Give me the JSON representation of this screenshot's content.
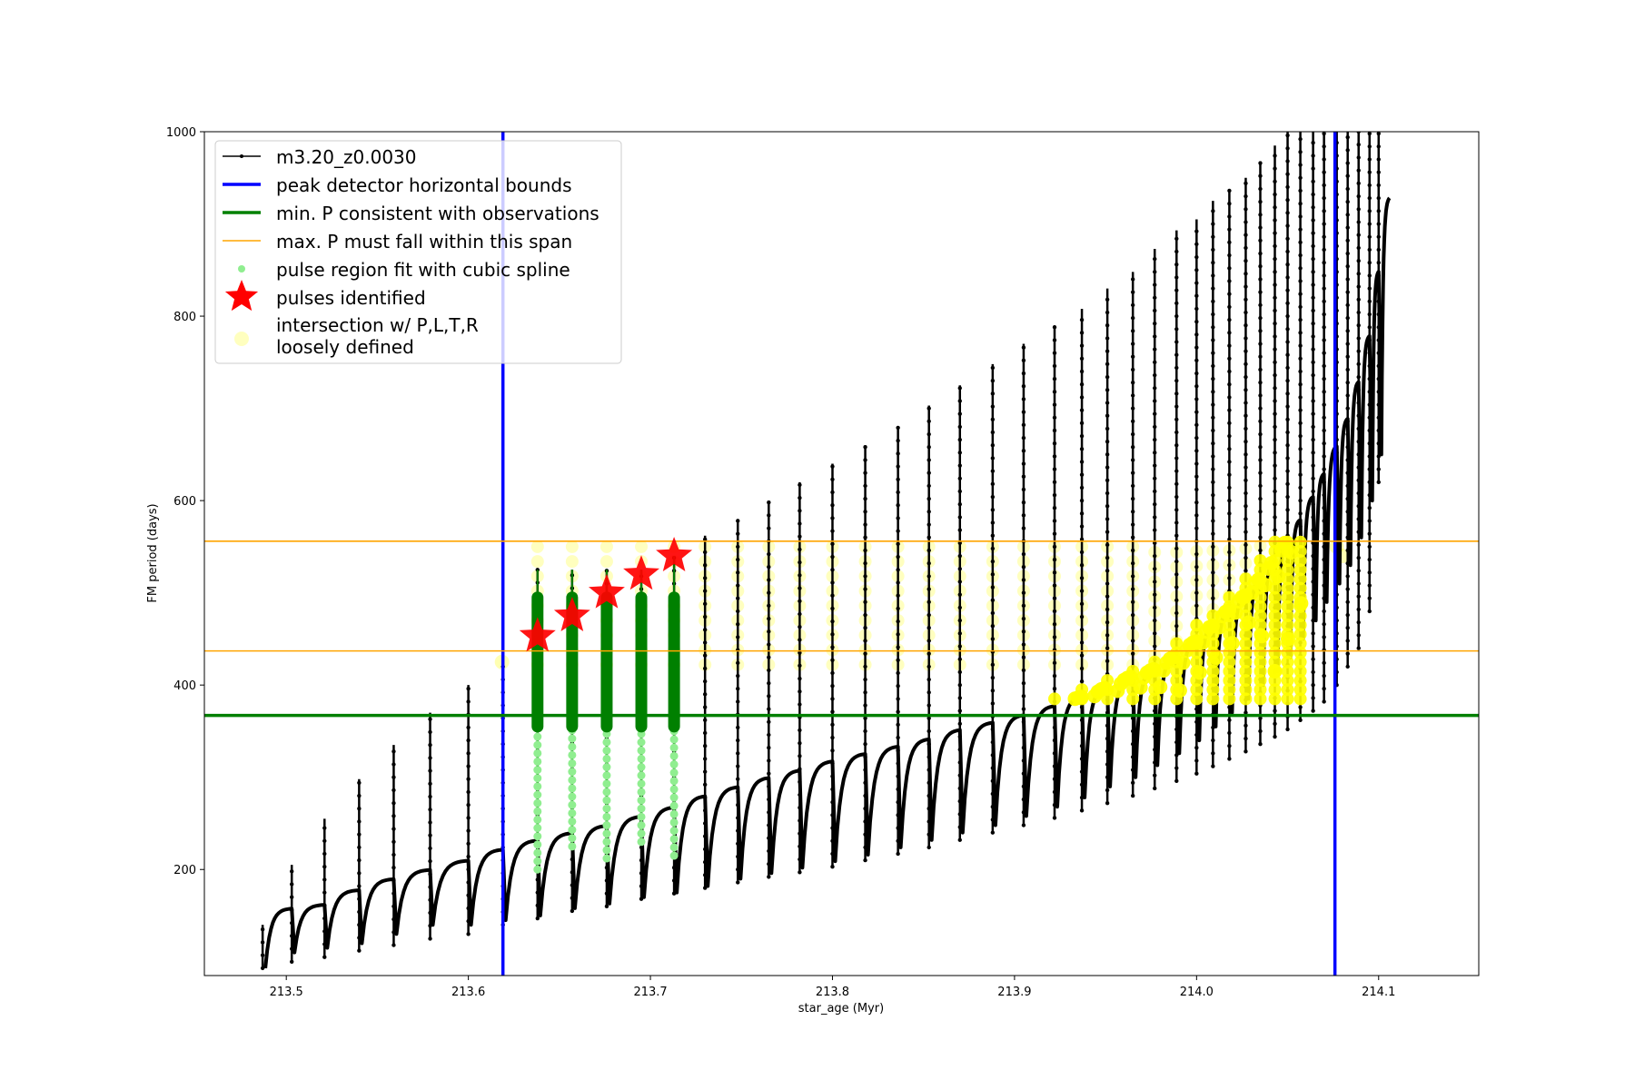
{
  "chart_data": {
    "type": "line",
    "title": "",
    "xlabel": "star_age (Myr)",
    "ylabel": "FM period (days)",
    "xlim": [
      213.455,
      214.155
    ],
    "ylim": [
      85,
      1000
    ],
    "xticks": [
      213.5,
      213.6,
      213.7,
      213.8,
      213.9,
      214.0,
      214.1
    ],
    "xtick_labels": [
      "213.5",
      "213.6",
      "213.7",
      "213.8",
      "213.9",
      "214.0",
      "214.1"
    ],
    "yticks": [
      200,
      400,
      600,
      800,
      1000
    ],
    "ytick_labels": [
      "200",
      "400",
      "600",
      "800",
      "1000"
    ],
    "grid": false,
    "legend_position": "top-left",
    "colors": {
      "track": "#000000",
      "bounds": "#0000ff",
      "min_p": "#008000",
      "max_p": "#ffa500",
      "spline_light": "#90ee90",
      "spline_dark": "#008000",
      "pulse_star": "#ff0000",
      "intersection": "#ffff00"
    },
    "track_series": {
      "name": "m3.20_z0.0030",
      "pulse_times": [
        213.487,
        213.503,
        213.521,
        213.54,
        213.559,
        213.579,
        213.6,
        213.619,
        213.638,
        213.657,
        213.676,
        213.695,
        213.713,
        213.73,
        213.748,
        213.765,
        213.782,
        213.8,
        213.818,
        213.836,
        213.853,
        213.87,
        213.888,
        213.905,
        213.922,
        213.937,
        213.951,
        213.965,
        213.977,
        213.989,
        214.0,
        214.009,
        214.018,
        214.027,
        214.035,
        214.043,
        214.05,
        214.057,
        214.064,
        214.07,
        214.077,
        214.083,
        214.089,
        214.095,
        214.1
      ],
      "pulse_base": [
        93,
        110,
        115,
        120,
        130,
        140,
        140,
        145,
        150,
        158,
        163,
        170,
        175,
        182,
        190,
        196,
        202,
        209,
        216,
        224,
        232,
        240,
        248,
        258,
        268,
        278,
        290,
        300,
        313,
        326,
        340,
        355,
        370,
        385,
        400,
        415,
        430,
        450,
        470,
        490,
        510,
        530,
        560,
        600,
        650
      ],
      "pulse_top": [
        140,
        205,
        255,
        298,
        335,
        370,
        400,
        430,
        525,
        525,
        525,
        525,
        540,
        562,
        580,
        600,
        620,
        640,
        660,
        680,
        703,
        725,
        748,
        770,
        790,
        808,
        830,
        848,
        873,
        893,
        905,
        925,
        937,
        950,
        968,
        985,
        1000,
        1000,
        1000,
        1000,
        1000,
        1000,
        1000,
        1000,
        1000
      ],
      "pulse_tail_min": [
        93,
        100,
        105,
        112,
        118,
        125,
        130,
        140,
        147,
        155,
        160,
        168,
        174,
        180,
        186,
        192,
        197,
        203,
        210,
        217,
        224,
        232,
        240,
        248,
        256,
        264,
        272,
        280,
        288,
        296,
        304,
        312,
        320,
        328,
        336,
        344,
        352,
        362,
        372,
        382,
        400,
        420,
        440,
        480,
        620
      ],
      "plateau": [
        158,
        162,
        178,
        190,
        200,
        210,
        222,
        232,
        240,
        248,
        258,
        268,
        280,
        290,
        300,
        308,
        318,
        326,
        334,
        342,
        352,
        360,
        368,
        378,
        388,
        398,
        410,
        418,
        432,
        448,
        465,
        482,
        498,
        516,
        535,
        557,
        580,
        605,
        630,
        660,
        690,
        730,
        780,
        850,
        930
      ]
    },
    "bounds_series": {
      "name": "peak detector horizontal bounds",
      "x": [
        213.619,
        214.076
      ]
    },
    "min_p_series": {
      "name": "min. P consistent with observations",
      "y": 367
    },
    "max_p_series": {
      "name": "max. P must fall within this span",
      "y": [
        437,
        556
      ]
    },
    "spline_series": {
      "name": "pulse region fit with cubic spline",
      "pulses": [
        {
          "x": 213.638,
          "ymin": 200,
          "ymax": 490,
          "dark_min": 355,
          "dark_max": 495,
          "tip": 525
        },
        {
          "x": 213.657,
          "ymin": 225,
          "ymax": 490,
          "dark_min": 355,
          "dark_max": 495,
          "tip": 525
        },
        {
          "x": 213.676,
          "ymin": 212,
          "ymax": 490,
          "dark_min": 355,
          "dark_max": 495,
          "tip": 525
        },
        {
          "x": 213.695,
          "ymin": 230,
          "ymax": 490,
          "dark_min": 355,
          "dark_max": 495,
          "tip": 525
        },
        {
          "x": 213.713,
          "ymin": 215,
          "ymax": 490,
          "dark_min": 355,
          "dark_max": 495,
          "tip": 540
        }
      ]
    },
    "stars_series": {
      "name": "pulses identified",
      "x": [
        213.638,
        213.657,
        213.676,
        213.695,
        213.713
      ],
      "y": [
        453,
        475,
        500,
        520,
        540
      ]
    },
    "intersection_series": {
      "name": "intersection w/ P,L,T,R\nloosely defined",
      "name_lines": [
        "intersection w/ P,L,T,R",
        "loosely defined"
      ],
      "light_band": [
        437,
        556
      ],
      "dense_start_x": 213.89,
      "dense_end_x": 214.06
    }
  }
}
